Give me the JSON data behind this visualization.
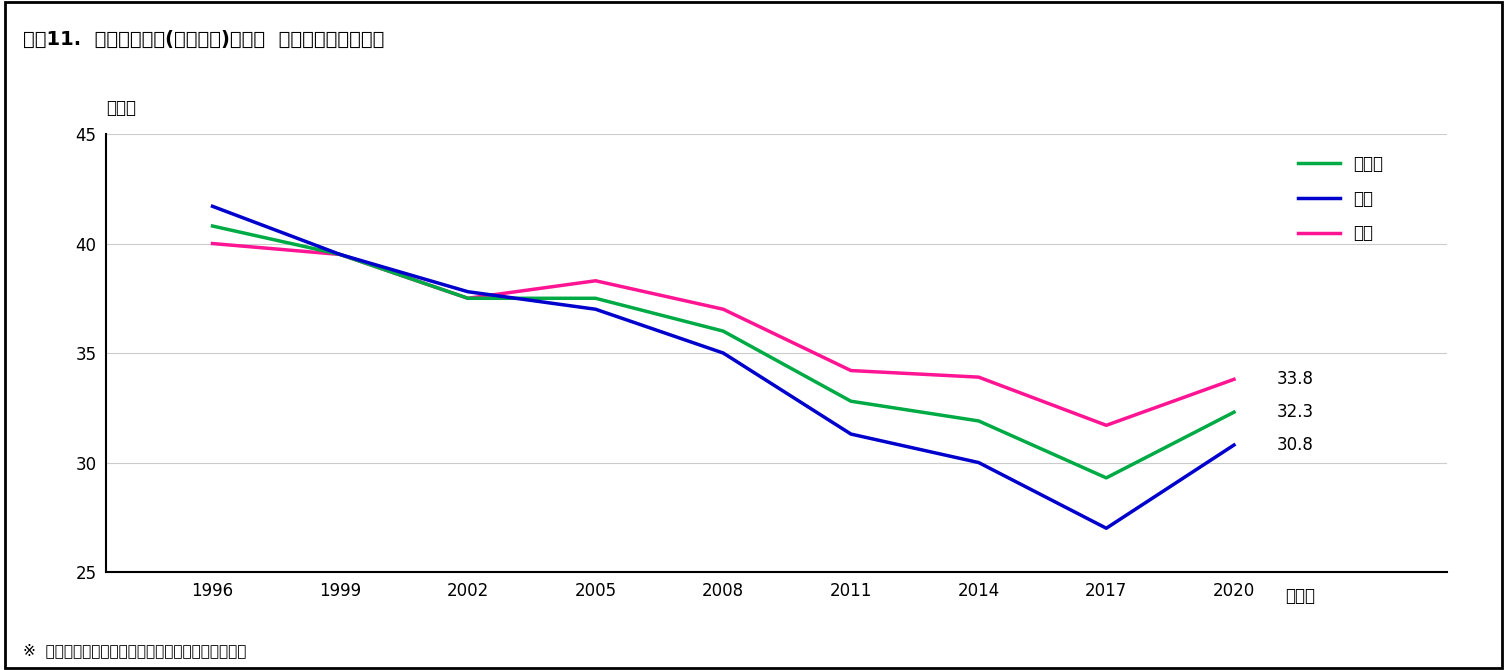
{
  "title": "図表11.  平均入院日数(退院患者)の推移  （男女計・男女別）",
  "ylabel": "（日）",
  "xlabel_suffix": "（年）",
  "footnote": "※  「患者調査」（厚生労働省）をもとに、筆者作成",
  "years": [
    1996,
    1999,
    2002,
    2005,
    2008,
    2011,
    2014,
    2017,
    2020
  ],
  "total": [
    40.8,
    39.5,
    37.5,
    37.5,
    36.0,
    32.8,
    31.9,
    29.3,
    32.3
  ],
  "male": [
    41.7,
    39.5,
    37.8,
    37.0,
    35.0,
    31.3,
    30.0,
    27.0,
    30.8
  ],
  "female": [
    40.0,
    39.5,
    37.5,
    38.3,
    37.0,
    34.2,
    33.9,
    31.7,
    33.8
  ],
  "total_color": "#00aa44",
  "male_color": "#0000cc",
  "female_color": "#ff1493",
  "ylim": [
    25,
    45
  ],
  "yticks": [
    25,
    30,
    35,
    40,
    45
  ],
  "end_labels": [
    "33.8",
    "32.3",
    "30.8"
  ],
  "legend_labels": [
    "男女計",
    "男性",
    "女性"
  ],
  "grid_color": "#cccccc",
  "background_color": "#ffffff",
  "border_color": "#000000"
}
